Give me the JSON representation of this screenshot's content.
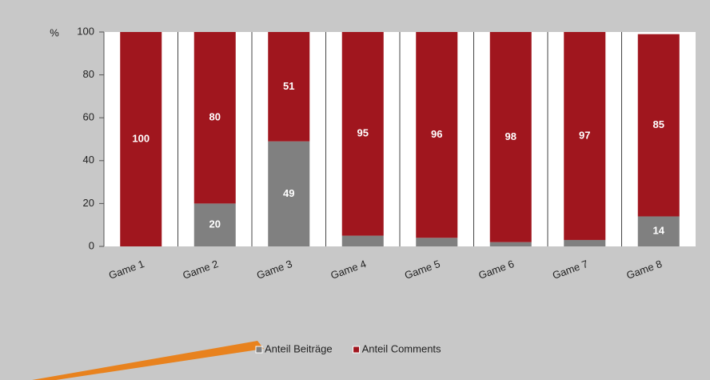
{
  "chart_data": {
    "type": "stacked_bar",
    "y_label": "%",
    "categories": [
      "Game 1",
      "Game 2",
      "Game 3",
      "Game 4",
      "Game 5",
      "Game 6",
      "Game 7",
      "Game 8"
    ],
    "series": [
      {
        "name": "Anteil Beiträge",
        "color": "#808080",
        "values": [
          0,
          20,
          49,
          5,
          4,
          2,
          3,
          14
        ],
        "value_labels": [
          null,
          "20",
          "49",
          null,
          null,
          null,
          null,
          "14"
        ]
      },
      {
        "name": "Anteil Comments",
        "color": "#a0161e",
        "values": [
          100,
          80,
          51,
          95,
          96,
          98,
          97,
          85
        ],
        "value_labels": [
          "100",
          "80",
          "51",
          "95",
          "96",
          "98",
          "97",
          "85"
        ]
      }
    ],
    "ylim": [
      0,
      100
    ],
    "yticks": [
      0,
      20,
      40,
      60,
      80,
      100
    ],
    "legend": "bottom"
  }
}
